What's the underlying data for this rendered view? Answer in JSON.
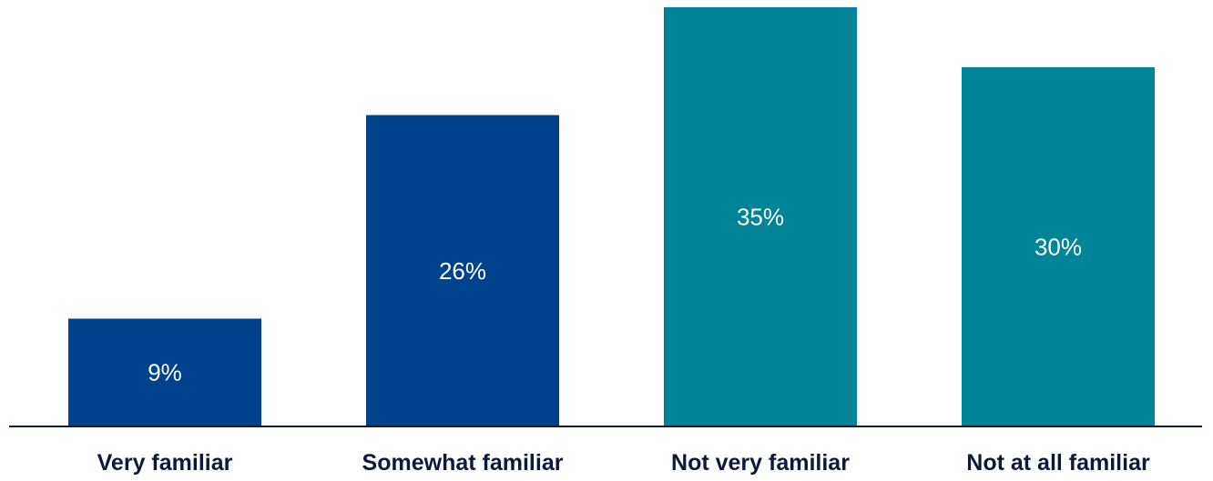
{
  "chart_data": {
    "type": "bar",
    "title": "",
    "xlabel": "",
    "ylabel": "",
    "categories": [
      "Very familiar",
      "Somewhat familiar",
      "Not very familiar",
      "Not at all familiar"
    ],
    "values": [
      9,
      26,
      35,
      30
    ],
    "value_labels": [
      "9%",
      "26%",
      "35%",
      "30%"
    ],
    "bar_colors": [
      "#00428c",
      "#00428c",
      "#008598",
      "#008598"
    ],
    "baseline_color": "#0c1a3a",
    "ylim": [
      0,
      35
    ],
    "grid": false,
    "legend": "none"
  }
}
